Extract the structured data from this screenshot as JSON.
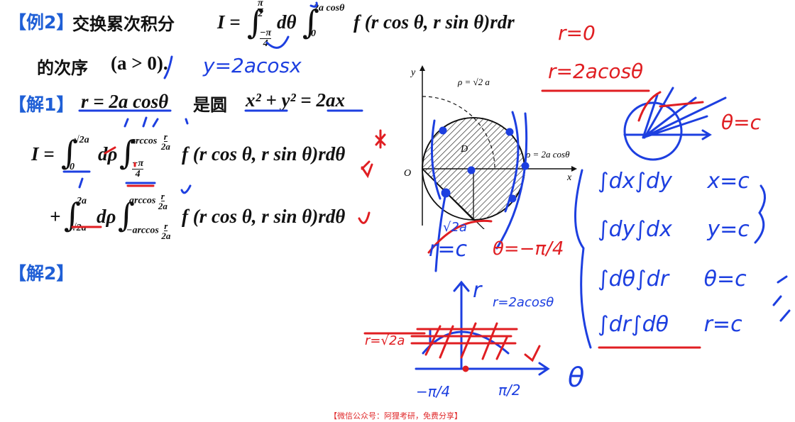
{
  "header": {
    "example_tag": "【例2】",
    "title": "交换累次积分",
    "order_text": "的次序",
    "condition": "(a > 0)."
  },
  "problem": {
    "lhs": "I =",
    "inner_upper": "2a cosθ",
    "inner_lower": "0",
    "outer_upper_num": "π",
    "outer_upper_den": "2",
    "outer_lower_num": "−π",
    "outer_lower_den": "4",
    "dtheta": "dθ",
    "integrand": "f (r cos θ, r sin θ)rdr"
  },
  "solution1": {
    "tag": "【解1】",
    "eq": "r = 2a cosθ",
    "is_circle": "是圆",
    "circle_eq": "x² + y² = 2ax",
    "lhs": "I =",
    "int1_upper": "√2a",
    "int1_lower": "0",
    "d_rho": "dρ",
    "int2_upper": "arccos",
    "int2_upper_frac_num": "r",
    "int2_upper_frac_den": "2a",
    "int2_lower_num": "−π",
    "int2_lower_den": "4",
    "integrand": "f (r cos θ, r sin θ)rdθ",
    "plus": "+",
    "int3_upper": "2a",
    "int3_lower": "√2a",
    "d_rho2": "dρ",
    "int4_upper": "arccos",
    "int4_lower": "−arccos",
    "int4_frac_num": "r",
    "int4_frac_den": "2a",
    "integrand2": "f (r cos θ, r sin θ)rdθ"
  },
  "solution2": {
    "tag": "【解2】"
  },
  "figure": {
    "y_axis": "y",
    "x_axis": "x",
    "origin": "O",
    "region": "D",
    "arc_label": "ρ = √2 a",
    "circle_label": "ρ = 2a cosθ"
  },
  "handwriting": {
    "blue_y_eq": "y=2acosx",
    "red_r0": "r=0",
    "red_r2acos": "r=2acosθ",
    "red_theta_c": "θ=c",
    "red_star": "*",
    "blue_sqrt2a": "√2a",
    "blue_r_c": "r=c",
    "red_theta_neg": "θ=−π/4",
    "blue_r_axis": "r",
    "blue_r_2acos": "r=2acosθ",
    "red_r_sqrt2a": "r=√2a",
    "blue_theta_axis": "θ",
    "blue_neg_pi4": "−π/4",
    "blue_pi2": "π/2",
    "rows": [
      {
        "expr": "∫dx∫dy",
        "cond": "x=c"
      },
      {
        "expr": "∫dy∫dx",
        "cond": "y=c"
      },
      {
        "expr": "∫dθ∫dr",
        "cond": "θ=c"
      },
      {
        "expr": "∫dr∫dθ",
        "cond": "r=c"
      }
    ]
  },
  "watermark": {
    "bottom": "【微信公众号：阿狸考研，免费分享】"
  },
  "colors": {
    "tag_blue": "#1f5fd6",
    "ink_blue": "#1d3fe0",
    "ink_red": "#e01e22",
    "watermark_red": "#e0282a"
  }
}
